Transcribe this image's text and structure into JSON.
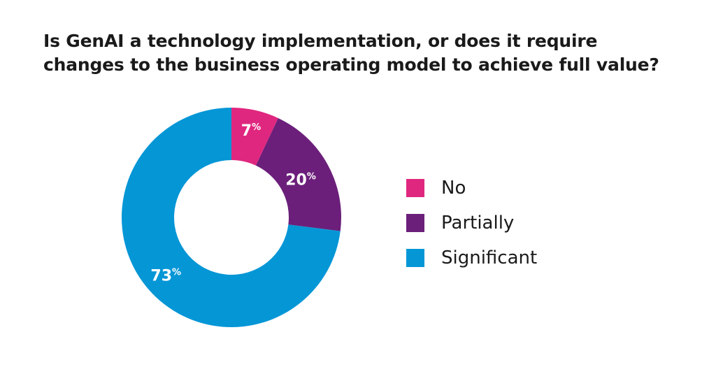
{
  "chart_data": {
    "type": "pie",
    "title_lines": [
      "Is GenAI a technology implementation, or does it require",
      "changes to the business operating model to achieve full value?"
    ],
    "slices": [
      {
        "label": "No",
        "value": 7,
        "display": "7",
        "color": "#e0277f"
      },
      {
        "label": "Partially",
        "value": 20,
        "display": "20",
        "color": "#6b1f7a"
      },
      {
        "label": "Significant",
        "value": 73,
        "display": "73",
        "color": "#0596d6"
      }
    ],
    "percent_sign": "%",
    "donut": true,
    "legend_position": "right"
  }
}
